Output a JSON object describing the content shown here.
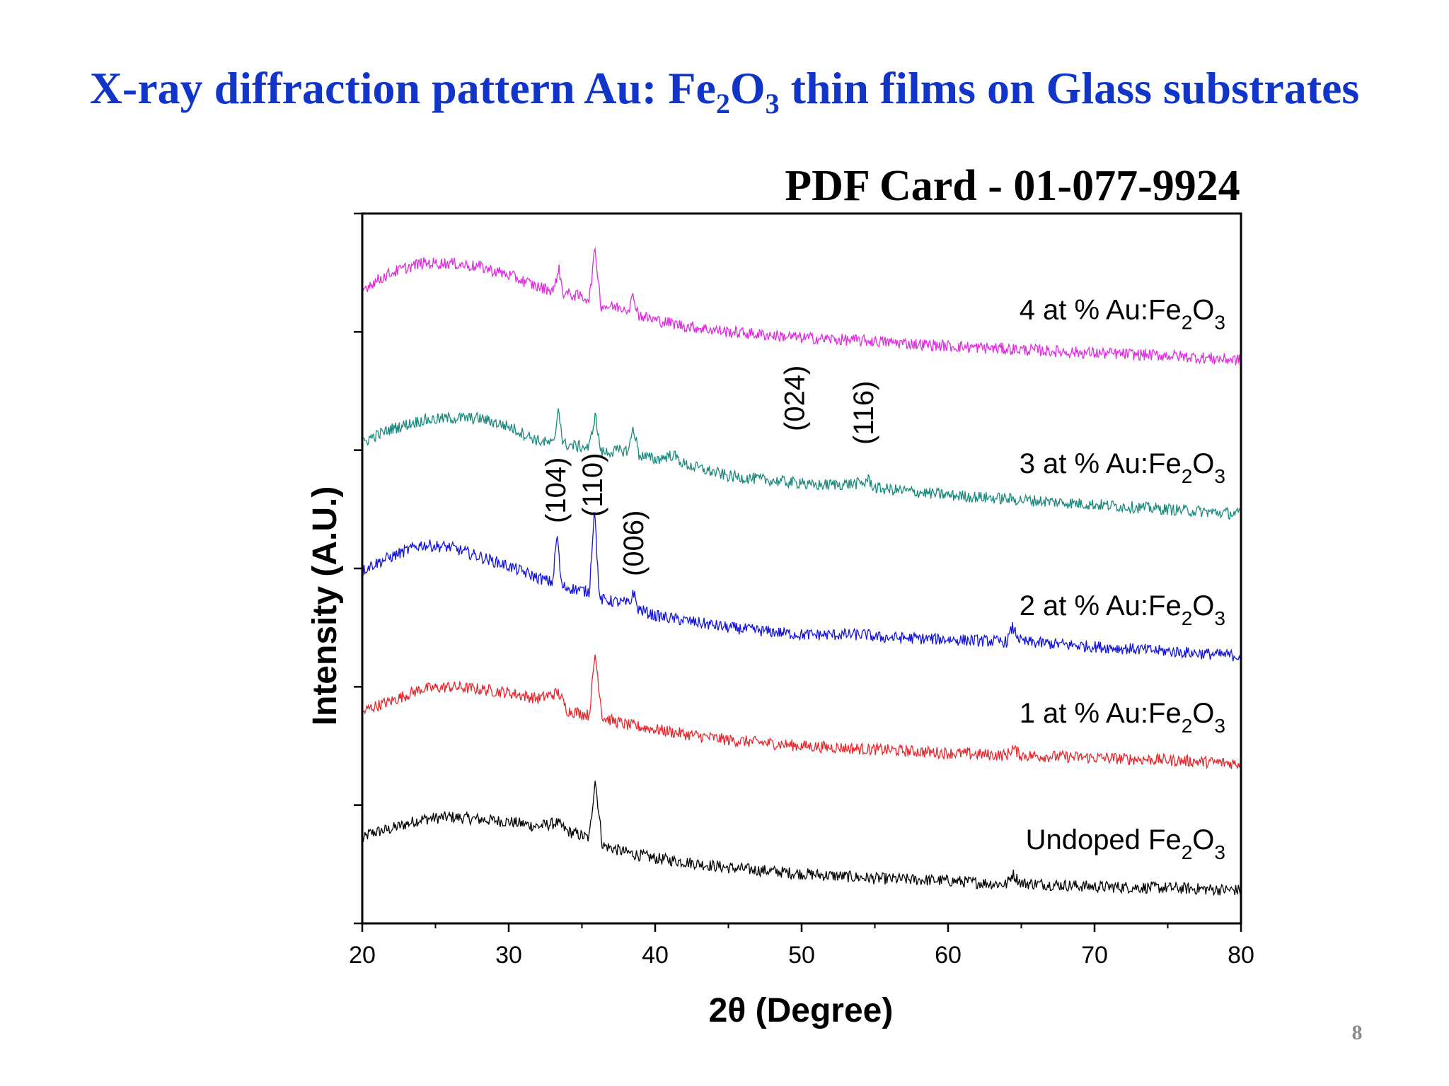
{
  "slide": {
    "title": {
      "part1": "X-ray diffraction pattern Au: Fe",
      "sub1": "2",
      "part2": "O",
      "sub2": "3",
      "part3": " thin films on Glass substrates"
    },
    "page_number": "8"
  },
  "colors": {
    "title": "#1035c8",
    "axis": "#000000",
    "text": "#000000",
    "page_number": "#8a8a8a"
  },
  "chart_data": {
    "type": "line",
    "subtitle": "PDF Card - 01-077-9924",
    "xlabel": "2θ (Degree)",
    "ylabel": "Intensity (A.U.)",
    "xlim": [
      20,
      80
    ],
    "xticks": [
      "20",
      "30",
      "40",
      "50",
      "60",
      "70",
      "80"
    ],
    "y_tick_labels_shown": false,
    "grid": false,
    "legend": "none",
    "notes": "Curves are vertically offset, stacked XRD patterns; y values are in arbitrary units (A.U.).",
    "ylim": [
      0,
      6
    ],
    "peak_labels": [
      {
        "text": "(104)",
        "x": 33.2
      },
      {
        "text": "(110)",
        "x": 35.7
      },
      {
        "text": "(006)",
        "x": 38.5
      },
      {
        "text": "(024)",
        "x": 49.5
      },
      {
        "text": "(116)",
        "x": 54.2
      }
    ],
    "series": [
      {
        "name_parts": [
          "Undoped Fe",
          "2",
          "O",
          "3"
        ],
        "color": "#000000",
        "noise": 0.05,
        "points": [
          [
            20,
            0.7
          ],
          [
            20.5,
            0.76
          ],
          [
            22,
            0.8
          ],
          [
            24,
            0.88
          ],
          [
            26,
            0.9
          ],
          [
            28,
            0.88
          ],
          [
            30,
            0.86
          ],
          [
            32,
            0.82
          ],
          [
            33.3,
            0.85
          ],
          [
            34,
            0.78
          ],
          [
            35.5,
            0.72
          ],
          [
            35.9,
            1.22
          ],
          [
            36.4,
            0.66
          ],
          [
            38,
            0.6
          ],
          [
            40,
            0.55
          ],
          [
            42,
            0.52
          ],
          [
            45,
            0.47
          ],
          [
            50,
            0.42
          ],
          [
            55,
            0.38
          ],
          [
            60,
            0.36
          ],
          [
            64,
            0.33
          ],
          [
            64.4,
            0.42
          ],
          [
            65,
            0.34
          ],
          [
            70,
            0.31
          ],
          [
            75,
            0.3
          ],
          [
            80,
            0.28
          ]
        ]
      },
      {
        "name_parts": [
          "1 at % Au:Fe",
          "2",
          "O",
          "3"
        ],
        "color": "#e8252b",
        "noise": 0.05,
        "points": [
          [
            20,
            1.78
          ],
          [
            20.5,
            1.82
          ],
          [
            22,
            1.88
          ],
          [
            24,
            1.98
          ],
          [
            26,
            2.0
          ],
          [
            28,
            1.98
          ],
          [
            30,
            1.95
          ],
          [
            32,
            1.9
          ],
          [
            33.4,
            1.95
          ],
          [
            34,
            1.8
          ],
          [
            35.5,
            1.76
          ],
          [
            35.9,
            2.28
          ],
          [
            36.4,
            1.74
          ],
          [
            38,
            1.68
          ],
          [
            40,
            1.64
          ],
          [
            42,
            1.6
          ],
          [
            45,
            1.55
          ],
          [
            50,
            1.5
          ],
          [
            55,
            1.47
          ],
          [
            60,
            1.44
          ],
          [
            64,
            1.42
          ],
          [
            64.4,
            1.48
          ],
          [
            65,
            1.42
          ],
          [
            70,
            1.4
          ],
          [
            75,
            1.38
          ],
          [
            80,
            1.35
          ]
        ]
      },
      {
        "name_parts": [
          "2 at % Au:Fe",
          "2",
          "O",
          "3"
        ],
        "color": "#1414dc",
        "noise": 0.05,
        "points": [
          [
            20,
            2.98
          ],
          [
            20.5,
            3.02
          ],
          [
            22,
            3.1
          ],
          [
            24,
            3.2
          ],
          [
            26,
            3.18
          ],
          [
            28,
            3.1
          ],
          [
            30,
            3.02
          ],
          [
            32,
            2.92
          ],
          [
            33.0,
            2.88
          ],
          [
            33.3,
            3.3
          ],
          [
            33.6,
            2.85
          ],
          [
            35.5,
            2.8
          ],
          [
            35.85,
            3.52
          ],
          [
            36.2,
            2.74
          ],
          [
            38.3,
            2.7
          ],
          [
            38.5,
            2.82
          ],
          [
            38.8,
            2.66
          ],
          [
            40,
            2.6
          ],
          [
            42,
            2.56
          ],
          [
            45,
            2.5
          ],
          [
            50,
            2.44
          ],
          [
            54.5,
            2.44
          ],
          [
            55,
            2.42
          ],
          [
            60,
            2.4
          ],
          [
            64,
            2.38
          ],
          [
            64.4,
            2.5
          ],
          [
            65,
            2.38
          ],
          [
            70,
            2.34
          ],
          [
            75,
            2.3
          ],
          [
            80,
            2.26
          ]
        ]
      },
      {
        "name_parts": [
          "3 at % Au:Fe",
          "2",
          "O",
          "3"
        ],
        "color": "#1a8a7e",
        "noise": 0.05,
        "points": [
          [
            20,
            4.05
          ],
          [
            20.5,
            4.1
          ],
          [
            22,
            4.18
          ],
          [
            24,
            4.25
          ],
          [
            26,
            4.27
          ],
          [
            28,
            4.27
          ],
          [
            30,
            4.2
          ],
          [
            32,
            4.08
          ],
          [
            33.1,
            4.05
          ],
          [
            33.4,
            4.38
          ],
          [
            33.7,
            4.05
          ],
          [
            35.5,
            4.02
          ],
          [
            35.9,
            4.3
          ],
          [
            36.3,
            3.98
          ],
          [
            38.2,
            4.0
          ],
          [
            38.5,
            4.2
          ],
          [
            38.9,
            3.96
          ],
          [
            40,
            3.92
          ],
          [
            41.2,
            3.96
          ],
          [
            42,
            3.88
          ],
          [
            45,
            3.78
          ],
          [
            49.8,
            3.72
          ],
          [
            50,
            3.76
          ],
          [
            50.3,
            3.7
          ],
          [
            54.3,
            3.72
          ],
          [
            54.5,
            3.76
          ],
          [
            55,
            3.68
          ],
          [
            60,
            3.62
          ],
          [
            65,
            3.58
          ],
          [
            70,
            3.54
          ],
          [
            75,
            3.5
          ],
          [
            80,
            3.46
          ]
        ]
      },
      {
        "name_parts": [
          "4 at % Au:Fe",
          "2",
          "O",
          "3"
        ],
        "color": "#e02be0",
        "noise": 0.05,
        "points": [
          [
            20,
            5.35
          ],
          [
            20.5,
            5.4
          ],
          [
            22,
            5.5
          ],
          [
            24,
            5.58
          ],
          [
            26,
            5.58
          ],
          [
            28,
            5.55
          ],
          [
            30,
            5.48
          ],
          [
            32,
            5.38
          ],
          [
            33.1,
            5.35
          ],
          [
            33.4,
            5.55
          ],
          [
            33.7,
            5.33
          ],
          [
            35.5,
            5.28
          ],
          [
            35.9,
            5.7
          ],
          [
            36.3,
            5.22
          ],
          [
            38.2,
            5.2
          ],
          [
            38.5,
            5.3
          ],
          [
            38.9,
            5.14
          ],
          [
            40,
            5.1
          ],
          [
            42,
            5.05
          ],
          [
            45,
            5.0
          ],
          [
            50,
            4.95
          ],
          [
            55,
            4.92
          ],
          [
            60,
            4.88
          ],
          [
            65,
            4.85
          ],
          [
            70,
            4.82
          ],
          [
            75,
            4.8
          ],
          [
            80,
            4.76
          ]
        ]
      }
    ]
  }
}
